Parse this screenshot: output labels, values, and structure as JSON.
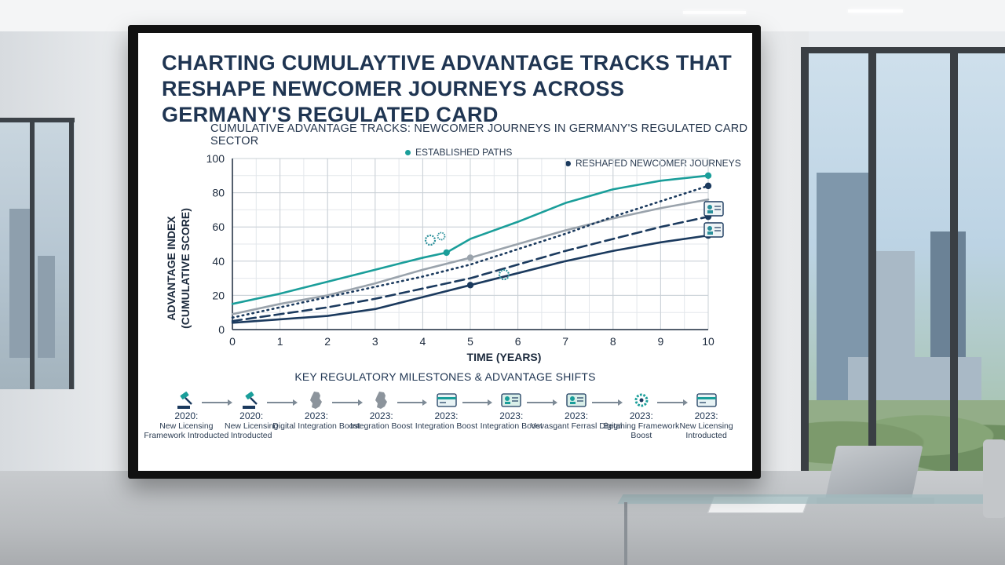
{
  "title": "CHARTING CUMULAYTIVE ADVANTAGE TRACKS THAT RESHAPE NEWCOMER JOURNEYS ACROSS GERMANY'S REGULATED CARD",
  "chart_data": {
    "type": "line",
    "title": "CUMULATIVE ADVANTAGE TRACKS: NEWCOMER JOURNEYS IN GERMANY'S REGULATED CARD SECTOR",
    "xlabel": "TIME (YEARS)",
    "ylabel_line1": "ADVANTAGE INDEX",
    "ylabel_line2": "(CUMULATIVE SCORE)",
    "x_ticks": [
      0,
      1,
      2,
      3,
      4,
      5,
      6,
      7,
      8,
      9,
      10
    ],
    "y_ticks": [
      0,
      20,
      40,
      60,
      80,
      100
    ],
    "xlim": [
      0,
      10
    ],
    "ylim": [
      0,
      100
    ],
    "grid": true,
    "legend_position": "top-right",
    "legend": [
      {
        "label": "ESTABLISHED PATHS",
        "color": "#1a9e9a"
      },
      {
        "label": "RESHAPED NEWCOMER JOURNEYS",
        "color": "#1b3a5e"
      }
    ],
    "series": [
      {
        "style": "solid",
        "color": "#1a9e9a",
        "x": [
          0,
          1,
          2,
          3,
          4,
          4.5,
          5,
          6,
          7,
          8,
          9,
          10
        ],
        "y": [
          15,
          21,
          28,
          35,
          42,
          45,
          53,
          63,
          74,
          82,
          87,
          90
        ],
        "markers": [
          [
            4.5,
            45
          ],
          [
            10,
            90
          ]
        ]
      },
      {
        "style": "solid",
        "color": "#9aa3ac",
        "x": [
          0,
          1,
          2,
          3,
          4,
          5,
          6,
          7,
          8,
          9,
          10
        ],
        "y": [
          9,
          15,
          20,
          27,
          35,
          42,
          50,
          58,
          65,
          71,
          76
        ],
        "markers": [
          [
            5,
            42
          ]
        ]
      },
      {
        "style": "dotted",
        "color": "#1b3a5e",
        "x": [
          0,
          1,
          2,
          3,
          4,
          5,
          6,
          7,
          8,
          9,
          10
        ],
        "y": [
          7,
          13,
          19,
          25,
          31,
          38,
          47,
          56,
          66,
          75,
          84
        ],
        "markers": [
          [
            10,
            84
          ]
        ]
      },
      {
        "style": "dashed",
        "color": "#1b3a5e",
        "x": [
          0,
          1,
          2,
          3,
          4,
          5,
          6,
          7,
          8,
          9,
          10
        ],
        "y": [
          5,
          9,
          13,
          18,
          24,
          30,
          38,
          46,
          53,
          60,
          66
        ],
        "markers": [
          [
            10,
            66
          ]
        ]
      },
      {
        "style": "solid",
        "color": "#1b3a5e",
        "x": [
          0,
          1,
          2,
          3,
          4,
          5,
          6,
          7,
          8,
          9,
          10
        ],
        "y": [
          4,
          6,
          8,
          12,
          19,
          26,
          33,
          40,
          46,
          51,
          55
        ],
        "markers": [
          [
            5,
            26
          ],
          [
            10,
            55
          ]
        ]
      }
    ]
  },
  "milestones": {
    "heading": "KEY REGULATORY MILESTONES & ADVANTAGE SHIFTS",
    "items": [
      {
        "year": "2020:",
        "label": "New Licensing Framework Introducted",
        "icon": "gavel-icon"
      },
      {
        "year": "2020:",
        "label": "New Licensing Introducted",
        "icon": "gavel-icon"
      },
      {
        "year": "2023:",
        "label": "Digital Integration Boost",
        "icon": "germany-map-icon"
      },
      {
        "year": "2023:",
        "label": "Integration Boost",
        "icon": "germany-map-icon"
      },
      {
        "year": "2023:",
        "label": "Integration Boost",
        "icon": "card-icon"
      },
      {
        "year": "2023:",
        "label": "Integration Boost",
        "icon": "id-card-icon"
      },
      {
        "year": "2023:",
        "label": "Vevasgant Ferrasl Digital",
        "icon": "id-card-icon"
      },
      {
        "year": "2023:",
        "label": "Begming Framework Boost",
        "icon": "gear-icon"
      },
      {
        "year": "2023:",
        "label": "New Licensing Introducted",
        "icon": "card-icon"
      }
    ]
  }
}
